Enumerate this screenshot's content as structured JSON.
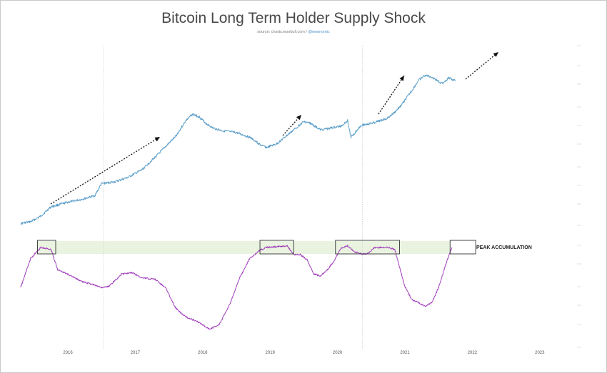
{
  "chart_data": {
    "type": "line",
    "title": "Bitcoin Long Term Holder Supply Shock",
    "source": "source: charts.woobull.com / ",
    "source_handle": "@woonomic",
    "annotation": "PEAK ACCUMULATION",
    "x_ticks": [
      "2016",
      "2017",
      "2018",
      "2019",
      "2020",
      "2021",
      "2022",
      "2023"
    ],
    "x_range": [
      2015.3,
      2023.6
    ],
    "grid": false,
    "legend": "none",
    "colors": {
      "price": "#5b9ec9",
      "supply_shock": "#a23fbd",
      "peak_band": "#e9f3e0",
      "arrows": "#111111",
      "vlines": "#d0d0d0"
    },
    "vertical_markers": [
      2016.53,
      2020.37
    ],
    "peak_zone_boxes": [
      [
        2015.55,
        2015.82
      ],
      [
        2018.85,
        2019.35
      ],
      [
        2019.97,
        2020.92
      ],
      [
        2021.67,
        2022.05
      ]
    ],
    "series": [
      {
        "x": [
          2015.3,
          2015.45,
          2015.6,
          2015.75,
          2015.85,
          2016.0,
          2016.2,
          2016.4,
          2016.5,
          2016.7,
          2016.9,
          2017.1,
          2017.3,
          2017.45,
          2017.6,
          2017.75,
          2017.85,
          2017.95,
          2018.05,
          2018.15,
          2018.3,
          2018.5,
          2018.7,
          2018.85,
          2018.95,
          2019.1,
          2019.25,
          2019.4,
          2019.5,
          2019.6,
          2019.75,
          2019.9,
          2020.05,
          2020.15,
          2020.2,
          2020.35,
          2020.5,
          2020.6,
          2020.75,
          2020.85,
          2020.95,
          2021.1,
          2021.2,
          2021.3,
          2021.4,
          2021.55,
          2021.65,
          2021.75
        ],
        "y": [
          0.02,
          0.04,
          0.1,
          0.2,
          0.22,
          0.25,
          0.28,
          0.32,
          0.45,
          0.47,
          0.52,
          0.6,
          0.74,
          0.85,
          0.96,
          1.13,
          1.2,
          1.17,
          1.1,
          1.05,
          1.02,
          1.0,
          0.95,
          0.87,
          0.84,
          0.88,
          0.97,
          1.06,
          1.12,
          1.1,
          1.03,
          1.05,
          1.07,
          1.13,
          0.95,
          1.08,
          1.1,
          1.12,
          1.16,
          1.22,
          1.3,
          1.45,
          1.56,
          1.62,
          1.6,
          1.53,
          1.59,
          1.56
        ]
      },
      {
        "x": [
          2015.3,
          2015.45,
          2015.6,
          2015.75,
          2015.85,
          2016.0,
          2016.2,
          2016.4,
          2016.5,
          2016.6,
          2016.8,
          2016.95,
          2017.1,
          2017.3,
          2017.45,
          2017.6,
          2017.75,
          2017.95,
          2018.1,
          2018.25,
          2018.4,
          2018.55,
          2018.7,
          2018.85,
          2018.95,
          2019.1,
          2019.25,
          2019.35,
          2019.45,
          2019.55,
          2019.65,
          2019.75,
          2019.85,
          2019.95,
          2020.05,
          2020.15,
          2020.25,
          2020.35,
          2020.45,
          2020.55,
          2020.65,
          2020.75,
          2020.85,
          2020.92,
          2021.0,
          2021.1,
          2021.2,
          2021.3,
          2021.4,
          2021.5,
          2021.6,
          2021.7
        ],
        "y": [
          0.55,
          0.88,
          1.0,
          0.98,
          0.75,
          0.7,
          0.62,
          0.58,
          0.55,
          0.56,
          0.7,
          0.72,
          0.66,
          0.64,
          0.55,
          0.32,
          0.22,
          0.16,
          0.08,
          0.14,
          0.36,
          0.66,
          0.88,
          0.97,
          1.0,
          1.01,
          1.02,
          0.92,
          0.92,
          0.86,
          0.7,
          0.68,
          0.75,
          0.85,
          0.99,
          1.02,
          0.95,
          0.93,
          0.93,
          1.0,
          1.0,
          1.0,
          0.98,
          0.78,
          0.56,
          0.42,
          0.38,
          0.34,
          0.38,
          0.55,
          0.8,
          1.0
        ]
      }
    ]
  }
}
